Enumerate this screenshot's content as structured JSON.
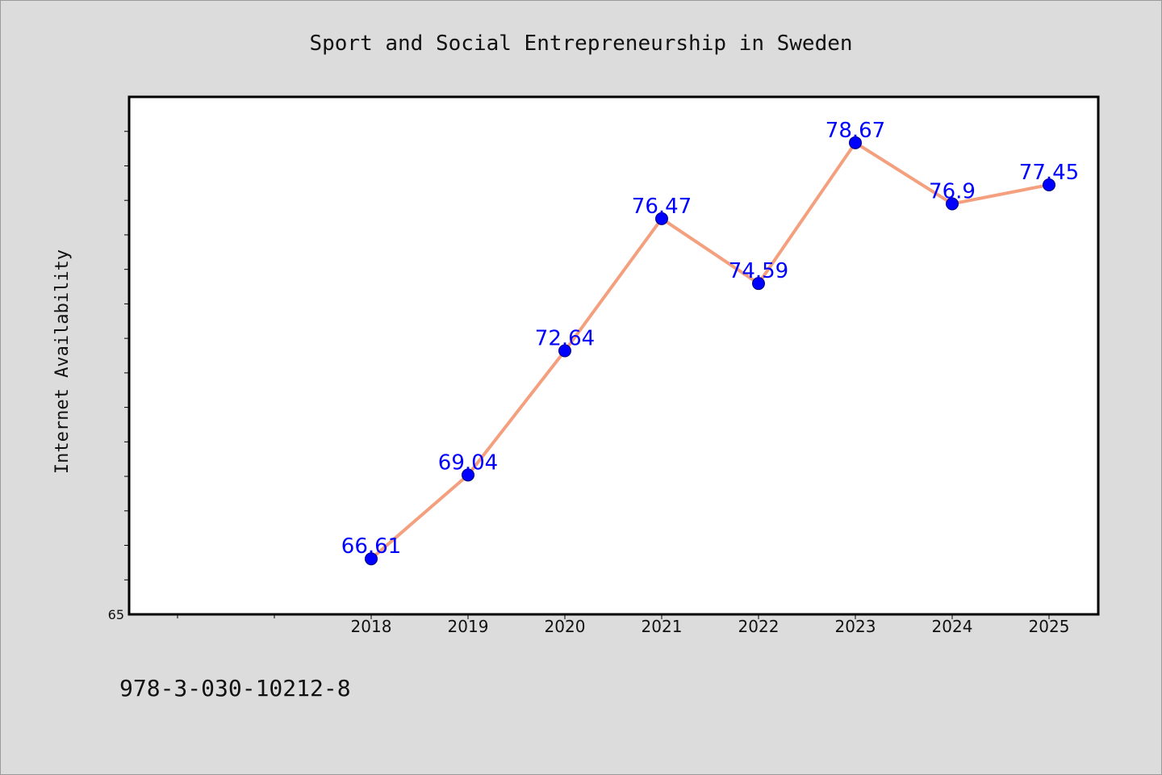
{
  "chart_data": {
    "type": "line",
    "title": "Sport and Social Entrepreneurship in Sweden",
    "xlabel": "",
    "ylabel": "Internet Availability",
    "categories": [
      "2018",
      "2019",
      "2020",
      "2021",
      "2022",
      "2023",
      "2024",
      "2025"
    ],
    "series": [
      {
        "values": [
          66.61,
          69.04,
          72.64,
          76.47,
          74.59,
          78.67,
          76.9,
          77.45
        ],
        "data_labels": [
          "66.61",
          "69.04",
          "72.64",
          "76.47",
          "74.59",
          "78.67",
          "76.9",
          "77.45"
        ]
      }
    ],
    "ylim": [
      65,
      80
    ],
    "y_tick_labels": [
      "65"
    ],
    "line_color": "#f4a07e",
    "marker_color": "#0000ff",
    "label_color": "#0000ff",
    "grid": false,
    "legend": "none"
  },
  "footer": {
    "isbn": "978-3-030-10212-8"
  }
}
